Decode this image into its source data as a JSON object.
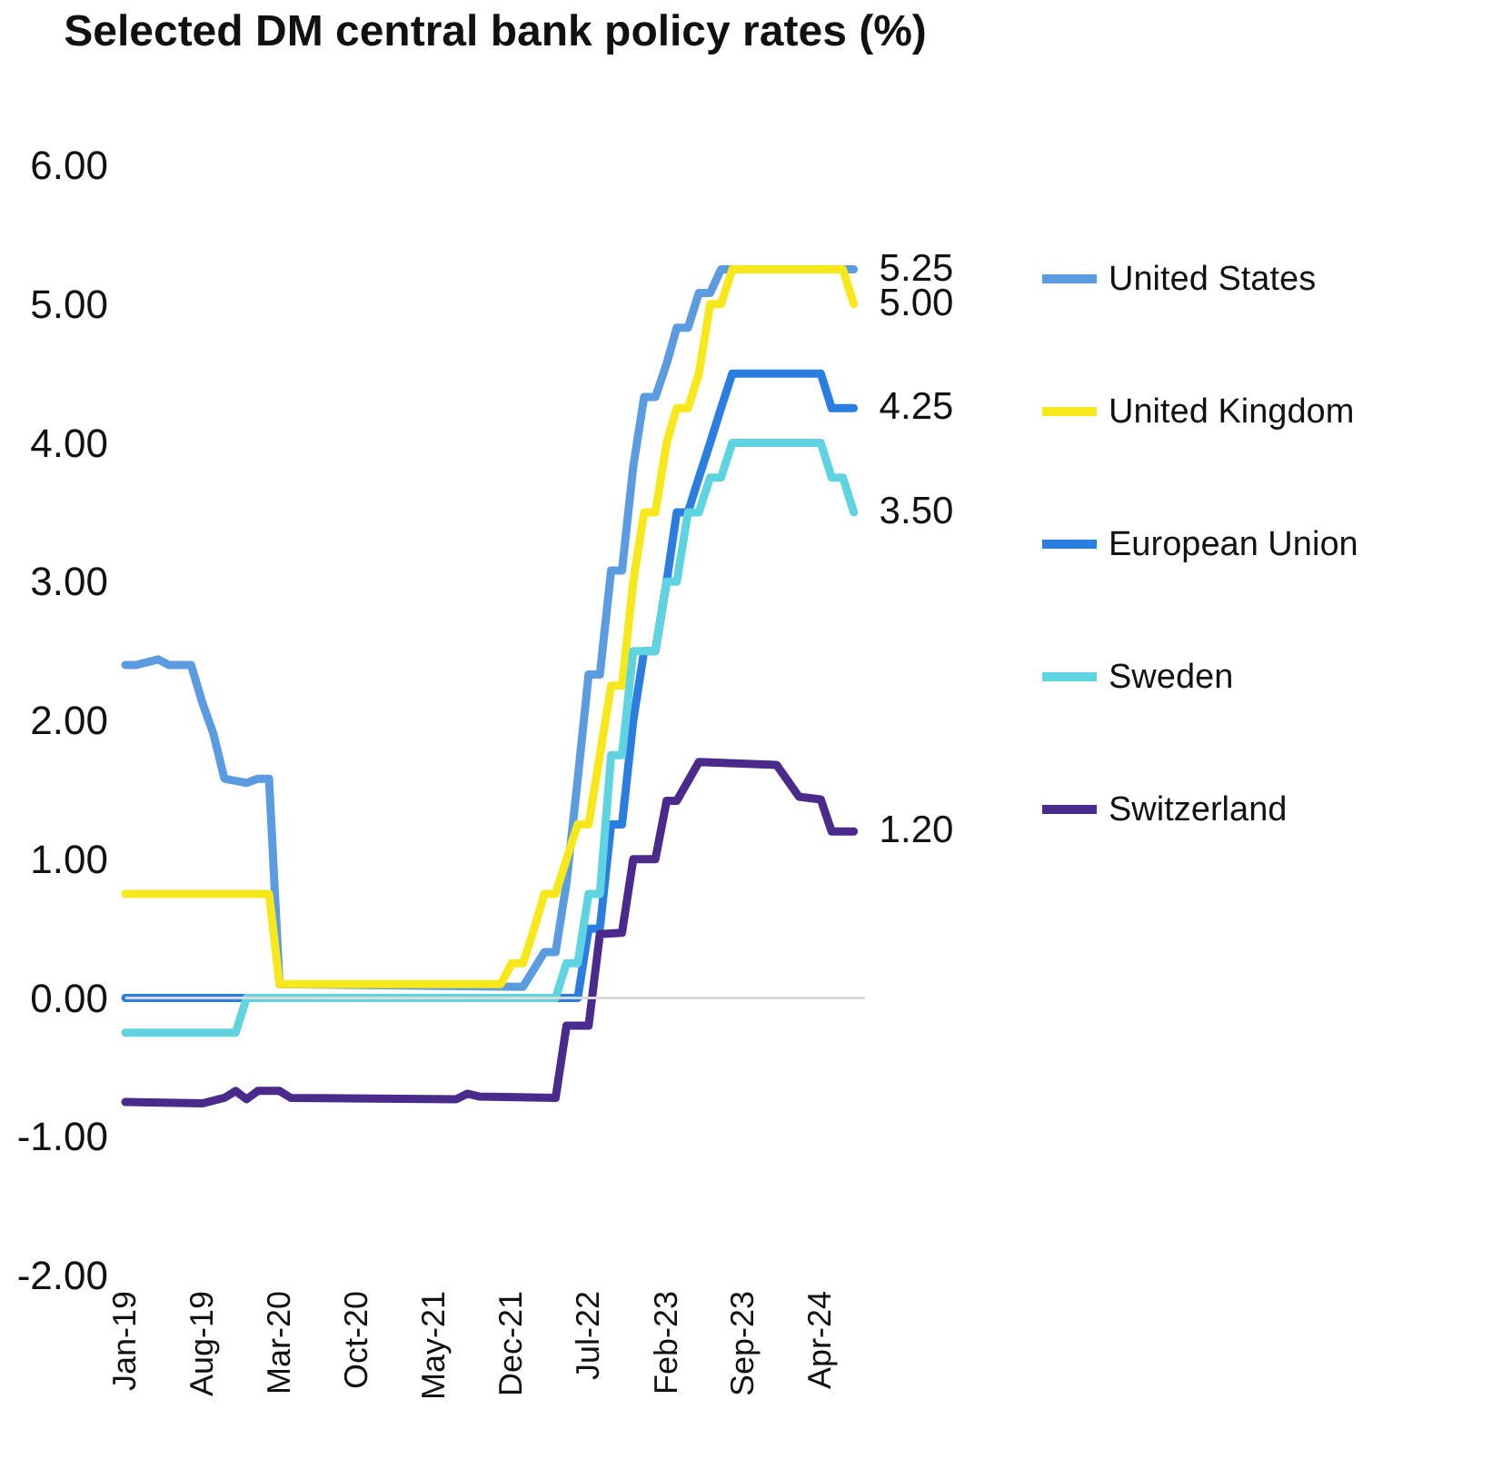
{
  "chart_data": {
    "type": "line",
    "title": "Selected DM central bank policy rates (%)",
    "xlim": [
      "2019-01",
      "2024-08"
    ],
    "xticks": [
      {
        "value": "2019-01",
        "label": "Jan-19"
      },
      {
        "value": "2019-08",
        "label": "Aug-19"
      },
      {
        "value": "2020-03",
        "label": "Mar-20"
      },
      {
        "value": "2020-10",
        "label": "Oct-20"
      },
      {
        "value": "2021-05",
        "label": "May-21"
      },
      {
        "value": "2021-12",
        "label": "Dec-21"
      },
      {
        "value": "2022-07",
        "label": "Jul-22"
      },
      {
        "value": "2023-02",
        "label": "Feb-23"
      },
      {
        "value": "2023-09",
        "label": "Sep-23"
      },
      {
        "value": "2024-04",
        "label": "Apr-24"
      }
    ],
    "ylim": [
      -2,
      6
    ],
    "yticks": [
      {
        "value": -2,
        "label": "-2.00"
      },
      {
        "value": -1,
        "label": "-1.00"
      },
      {
        "value": 0,
        "label": "0.00"
      },
      {
        "value": 1,
        "label": "1.00"
      },
      {
        "value": 2,
        "label": "2.00"
      },
      {
        "value": 3,
        "label": "3.00"
      },
      {
        "value": 4,
        "label": "4.00"
      },
      {
        "value": 5,
        "label": "5.00"
      },
      {
        "value": 6,
        "label": "6.00"
      }
    ],
    "grid": false,
    "legend": "right",
    "marker": "none",
    "line_style": "solid",
    "ref_lines": [
      {
        "axis": "y",
        "value": 0,
        "color": "#d9d9d9"
      }
    ],
    "series": [
      {
        "name": "United States",
        "color": "#5b9be0",
        "x": [
          "2019-01",
          "2019-02",
          "2019-04",
          "2019-05",
          "2019-07",
          "2019-08",
          "2019-09",
          "2019-10",
          "2019-12",
          "2020-01",
          "2020-02",
          "2020-03",
          "2022-01",
          "2022-03",
          "2022-04",
          "2022-05",
          "2022-06",
          "2022-07",
          "2022-08",
          "2022-09",
          "2022-10",
          "2022-11",
          "2022-12",
          "2023-01",
          "2023-02",
          "2023-03",
          "2023-04",
          "2023-05",
          "2023-06",
          "2023-07",
          "2024-07"
        ],
        "values": [
          2.4,
          2.4,
          2.44,
          2.4,
          2.4,
          2.13,
          1.9,
          1.58,
          1.55,
          1.58,
          1.58,
          0.1,
          0.08,
          0.33,
          0.33,
          0.83,
          1.58,
          2.33,
          2.33,
          3.08,
          3.08,
          3.83,
          4.33,
          4.33,
          4.57,
          4.83,
          4.83,
          5.08,
          5.08,
          5.25,
          5.25
        ],
        "value_labels": [
          null,
          null,
          null,
          null,
          null,
          null,
          null,
          null,
          null,
          null,
          null,
          null,
          null,
          null,
          null,
          null,
          null,
          null,
          null,
          null,
          null,
          null,
          null,
          null,
          null,
          null,
          null,
          null,
          null,
          null,
          "5.25"
        ]
      },
      {
        "name": "United Kingdom",
        "color": "#f7e81c",
        "x": [
          "2019-01",
          "2020-02",
          "2020-03",
          "2021-11",
          "2021-12",
          "2022-01",
          "2022-02",
          "2022-03",
          "2022-04",
          "2022-05",
          "2022-06",
          "2022-07",
          "2022-08",
          "2022-09",
          "2022-10",
          "2022-11",
          "2022-12",
          "2023-01",
          "2023-02",
          "2023-03",
          "2023-04",
          "2023-05",
          "2023-06",
          "2023-07",
          "2023-08",
          "2024-06",
          "2024-07"
        ],
        "values": [
          0.75,
          0.75,
          0.1,
          0.1,
          0.25,
          0.25,
          0.5,
          0.75,
          0.75,
          1.0,
          1.25,
          1.25,
          1.75,
          2.25,
          2.25,
          3.0,
          3.5,
          3.5,
          4.0,
          4.25,
          4.25,
          4.5,
          5.0,
          5.0,
          5.25,
          5.25,
          5.0
        ],
        "value_labels": [
          null,
          null,
          null,
          null,
          null,
          null,
          null,
          null,
          null,
          null,
          null,
          null,
          null,
          null,
          null,
          null,
          null,
          null,
          null,
          null,
          null,
          null,
          null,
          null,
          null,
          null,
          "5.00"
        ]
      },
      {
        "name": "European Union",
        "color": "#2b7de0",
        "x": [
          "2019-01",
          "2022-06",
          "2022-07",
          "2022-08",
          "2022-09",
          "2022-10",
          "2022-11",
          "2022-12",
          "2023-01",
          "2023-02",
          "2023-03",
          "2023-04",
          "2023-05",
          "2023-06",
          "2023-07",
          "2023-08",
          "2024-04",
          "2024-05",
          "2024-07"
        ],
        "values": [
          0,
          0,
          0.5,
          0.5,
          1.25,
          1.25,
          2.0,
          2.5,
          2.5,
          3.0,
          3.5,
          3.5,
          3.75,
          4.0,
          4.25,
          4.5,
          4.5,
          4.25,
          4.25
        ],
        "value_labels": [
          null,
          null,
          null,
          null,
          null,
          null,
          null,
          null,
          null,
          null,
          null,
          null,
          null,
          null,
          null,
          null,
          null,
          null,
          "4.25"
        ]
      },
      {
        "name": "Sweden",
        "color": "#5fd3e0",
        "x": [
          "2019-01",
          "2019-11",
          "2019-12",
          "2022-04",
          "2022-05",
          "2022-06",
          "2022-07",
          "2022-08",
          "2022-09",
          "2022-10",
          "2022-11",
          "2023-01",
          "2023-02",
          "2023-03",
          "2023-04",
          "2023-05",
          "2023-06",
          "2023-07",
          "2023-08",
          "2024-04",
          "2024-05",
          "2024-06",
          "2024-07"
        ],
        "values": [
          -0.25,
          -0.25,
          0,
          0,
          0.25,
          0.25,
          0.75,
          0.75,
          1.75,
          1.75,
          2.5,
          2.5,
          3.0,
          3.0,
          3.5,
          3.5,
          3.75,
          3.75,
          4.0,
          4.0,
          3.75,
          3.75,
          3.5
        ],
        "value_labels": [
          null,
          null,
          null,
          null,
          null,
          null,
          null,
          null,
          null,
          null,
          null,
          null,
          null,
          null,
          null,
          null,
          null,
          null,
          null,
          null,
          null,
          null,
          "3.50"
        ]
      },
      {
        "name": "Switzerland",
        "color": "#4a2a8a",
        "x": [
          "2019-01",
          "2019-08",
          "2019-10",
          "2019-11",
          "2019-12",
          "2020-01",
          "2020-03",
          "2020-04",
          "2021-07",
          "2021-08",
          "2021-09",
          "2022-04",
          "2022-05",
          "2022-07",
          "2022-08",
          "2022-10",
          "2022-11",
          "2023-01",
          "2023-02",
          "2023-03",
          "2023-05",
          "2023-12",
          "2024-02",
          "2024-04",
          "2024-05",
          "2024-07"
        ],
        "values": [
          -0.75,
          -0.76,
          -0.72,
          -0.67,
          -0.73,
          -0.67,
          -0.67,
          -0.72,
          -0.73,
          -0.69,
          -0.71,
          -0.72,
          -0.2,
          -0.2,
          0.46,
          0.47,
          1.0,
          1.0,
          1.42,
          1.42,
          1.7,
          1.68,
          1.45,
          1.43,
          1.2,
          1.2
        ],
        "value_labels": [
          null,
          null,
          null,
          null,
          null,
          null,
          null,
          null,
          null,
          null,
          null,
          null,
          null,
          null,
          null,
          null,
          null,
          null,
          null,
          null,
          null,
          null,
          null,
          null,
          null,
          "1.20"
        ]
      }
    ]
  }
}
